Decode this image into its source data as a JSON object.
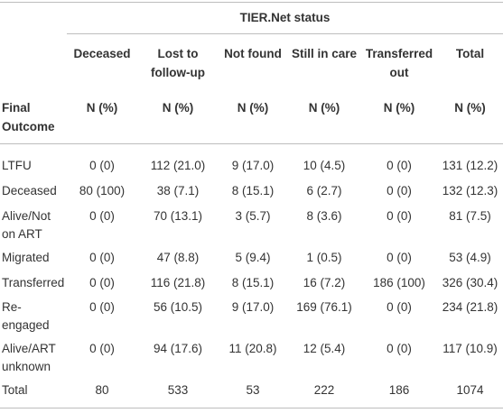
{
  "table": {
    "spanner": "TIER.Net status",
    "columns": [
      "Deceased",
      "Lost to follow-up",
      "Not found",
      "Still in care",
      "Transferred out",
      "Total"
    ],
    "subheader": {
      "label": "Final Outcome",
      "cells": [
        "N (%)",
        "N (%)",
        "N (%)",
        "N (%)",
        "N (%)",
        "N (%)"
      ]
    },
    "rows": [
      [
        "LTFU",
        "0 (0)",
        "112 (21.0)",
        "9 (17.0)",
        "10 (4.5)",
        "0 (0)",
        "131 (12.2)"
      ],
      [
        "Deceased",
        "80 (100)",
        "38 (7.1)",
        "8 (15.1)",
        "6 (2.7)",
        "0 (0)",
        "132 (12.3)"
      ],
      [
        "Alive/Not on ART",
        "0 (0)",
        "70 (13.1)",
        "3 (5.7)",
        "8 (3.6)",
        "0 (0)",
        "81 (7.5)"
      ],
      [
        "Migrated",
        "0 (0)",
        "47 (8.8)",
        "5 (9.4)",
        "1 (0.5)",
        "0 (0)",
        "53 (4.9)"
      ],
      [
        "Transferred",
        "0 (0)",
        "116 (21.8)",
        "8 (15.1)",
        "16 (7.2)",
        "186 (100)",
        "326 (30.4)"
      ],
      [
        "Re-engaged",
        "0 (0)",
        "56 (10.5)",
        "9 (17.0)",
        "169 (76.1)",
        "0 (0)",
        "234 (21.8)"
      ],
      [
        "Alive/ART unknown",
        "0 (0)",
        "94 (17.6)",
        "11 (20.8)",
        "12 (5.4)",
        "0 (0)",
        "117 (10.9)"
      ],
      [
        "Total",
        "80",
        "533",
        "53",
        "222",
        "186",
        "1074"
      ]
    ]
  }
}
